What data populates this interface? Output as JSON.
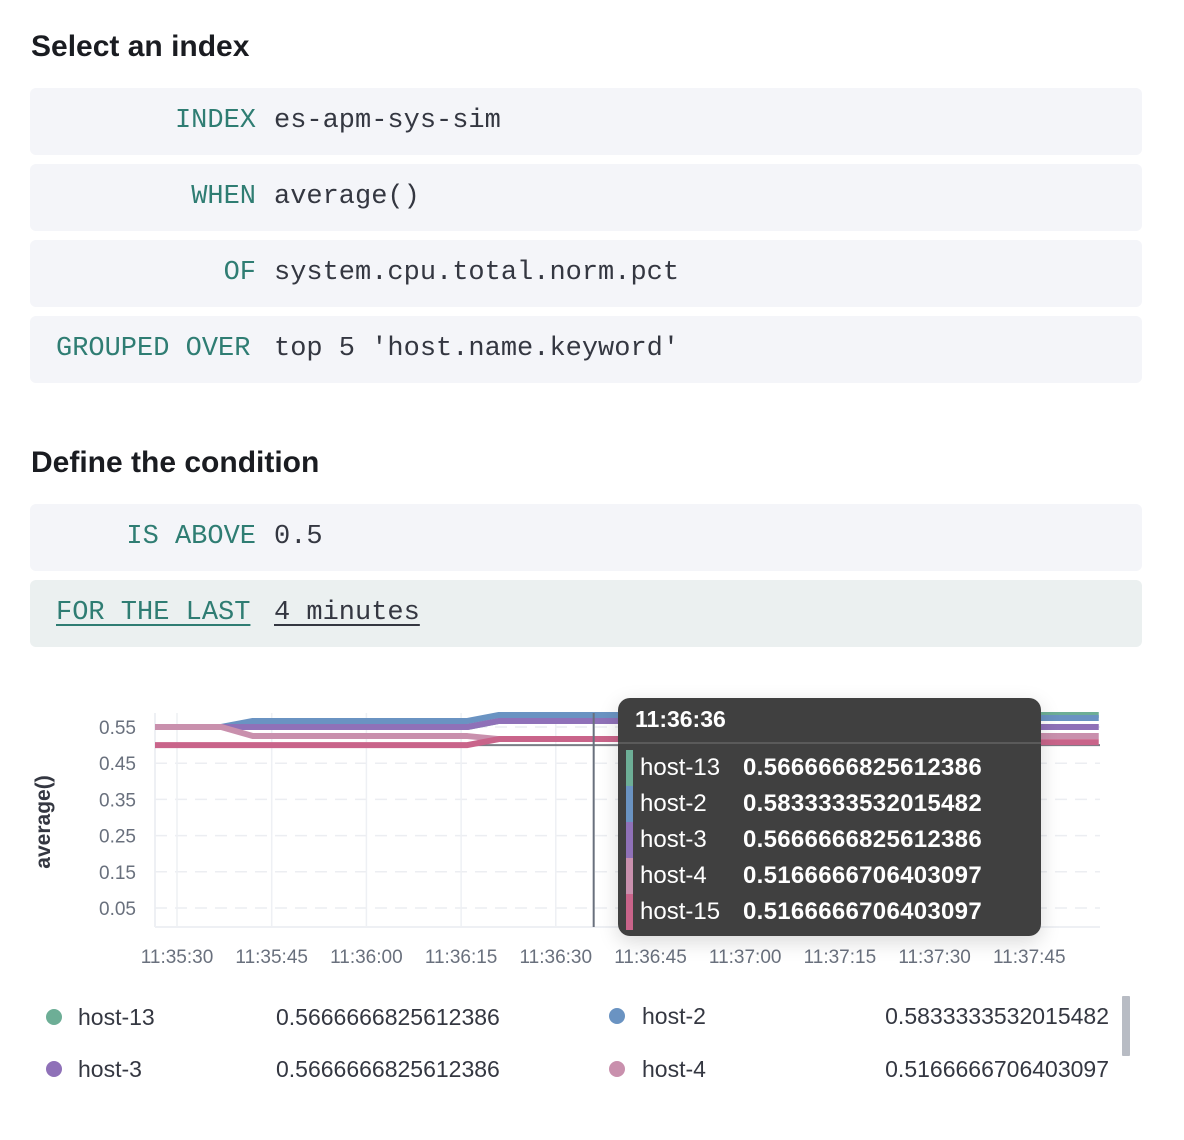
{
  "sections": {
    "index_title": "Select an index",
    "condition_title": "Define the condition"
  },
  "expression": [
    {
      "keyword": "INDEX",
      "value": "es-apm-sys-sim"
    },
    {
      "keyword": "WHEN",
      "value": "average()"
    },
    {
      "keyword": "OF",
      "value": "system.cpu.total.norm.pct"
    },
    {
      "keyword": "GROUPED OVER",
      "value": "top 5 'host.name.keyword'"
    }
  ],
  "condition": [
    {
      "keyword": "IS ABOVE",
      "value": "0.5"
    },
    {
      "keyword": "FOR THE LAST",
      "value": "4 minutes"
    }
  ],
  "chart_data": {
    "type": "line",
    "ylabel": "average()",
    "xlabel": "",
    "ylim": [
      0,
      0.59
    ],
    "y_ticks": [
      "0.55",
      "0.45",
      "0.35",
      "0.25",
      "0.15",
      "0.05"
    ],
    "x_ticks": [
      "11:35:30",
      "11:35:45",
      "11:36:00",
      "11:36:15",
      "11:36:30",
      "11:36:45",
      "11:37:00",
      "11:37:15",
      "11:37:30",
      "11:37:45"
    ],
    "grid": true,
    "threshold": 0.5,
    "x": [
      "11:35:26",
      "11:35:37",
      "11:35:42",
      "11:36:16",
      "11:36:21",
      "11:36:58",
      "11:37:01",
      "11:37:36",
      "11:37:42",
      "11:37:56"
    ],
    "series": [
      {
        "name": "host-13",
        "color": "#6dae96",
        "values": [
          0.55,
          0.55,
          0.55,
          0.55,
          0.5667,
          0.5667,
          0.575,
          0.575,
          0.5833,
          0.5833
        ]
      },
      {
        "name": "host-2",
        "color": "#6a93c2",
        "values": [
          0.55,
          0.55,
          0.5667,
          0.5667,
          0.5833,
          0.5833,
          0.5833,
          0.5833,
          0.575,
          0.575
        ]
      },
      {
        "name": "host-3",
        "color": "#8f71b8",
        "values": [
          0.55,
          0.55,
          0.55,
          0.55,
          0.5667,
          0.5667,
          0.5667,
          0.5667,
          0.55,
          0.55
        ]
      },
      {
        "name": "host-4",
        "color": "#c990ad",
        "values": [
          0.55,
          0.55,
          0.525,
          0.525,
          0.5167,
          0.5167,
          0.5167,
          0.5167,
          0.525,
          0.525
        ]
      },
      {
        "name": "host-15",
        "color": "#c9648a",
        "values": [
          0.5,
          0.5,
          0.5,
          0.5,
          0.5167,
          0.5167,
          0.5167,
          0.5167,
          0.5083,
          0.5083
        ]
      }
    ],
    "cursor_time": "11:36:36"
  },
  "tooltip": {
    "title": "11:36:36",
    "rows": [
      {
        "name": "host-13",
        "value": "0.5666666825612386",
        "color": "#6dae96"
      },
      {
        "name": "host-2",
        "value": "0.5833333532015482",
        "color": "#6a93c2"
      },
      {
        "name": "host-3",
        "value": "0.5666666825612386",
        "color": "#8f71b8"
      },
      {
        "name": "host-4",
        "value": "0.5166666706403097",
        "color": "#c990ad"
      },
      {
        "name": "host-15",
        "value": "0.5166666706403097",
        "color": "#c9648a"
      }
    ]
  },
  "legend": [
    {
      "name": "host-13",
      "value": "0.5666666825612386",
      "color": "#6dae96"
    },
    {
      "name": "host-2",
      "value": "0.5833333532015482",
      "color": "#6a93c2"
    },
    {
      "name": "host-3",
      "value": "0.5666666825612386",
      "color": "#8f71b8"
    },
    {
      "name": "host-4",
      "value": "0.5166666706403097",
      "color": "#c990ad"
    }
  ]
}
